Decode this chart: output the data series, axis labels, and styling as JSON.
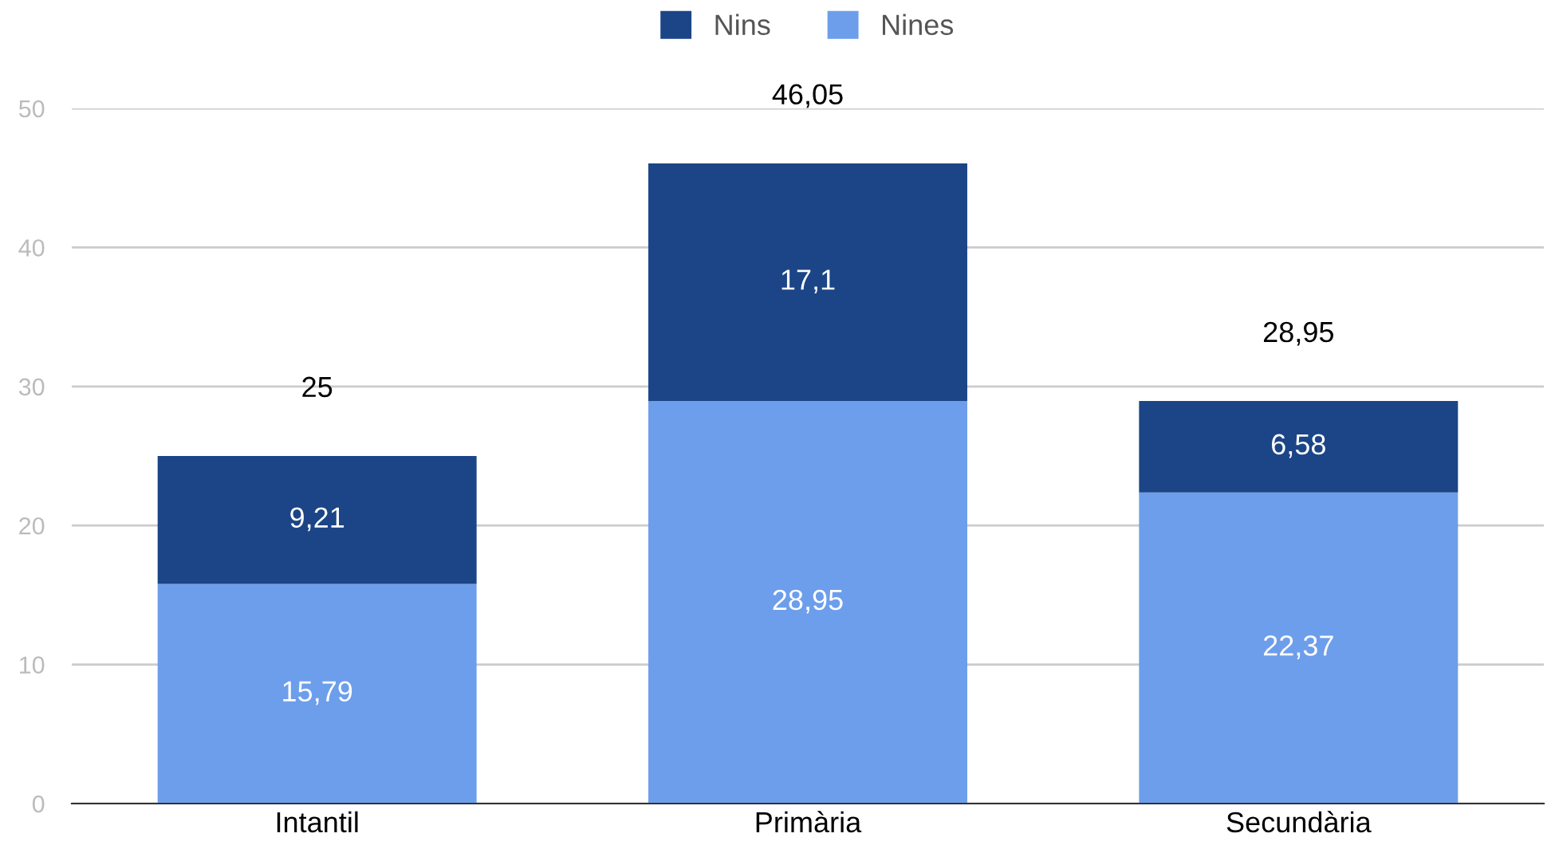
{
  "chart_data": {
    "type": "bar",
    "stacked": true,
    "categories": [
      "Intantil",
      "Primària",
      "Secundària"
    ],
    "series": [
      {
        "name": "Nines",
        "color": "#6d9eeb",
        "values": [
          15.79,
          28.95,
          22.37
        ],
        "value_labels": [
          "15,79",
          "28,95",
          "22,37"
        ]
      },
      {
        "name": "Nins",
        "color": "#1c4587",
        "values": [
          9.21,
          17.1,
          6.58
        ],
        "value_labels": [
          "9,21",
          "17,1",
          "6,58"
        ]
      }
    ],
    "totals": [
      "25",
      "46,05",
      "28,95"
    ],
    "ylim": [
      0,
      50
    ],
    "yticks": [
      0,
      10,
      20,
      30,
      40,
      50
    ],
    "grid": "y",
    "legend": "top"
  }
}
